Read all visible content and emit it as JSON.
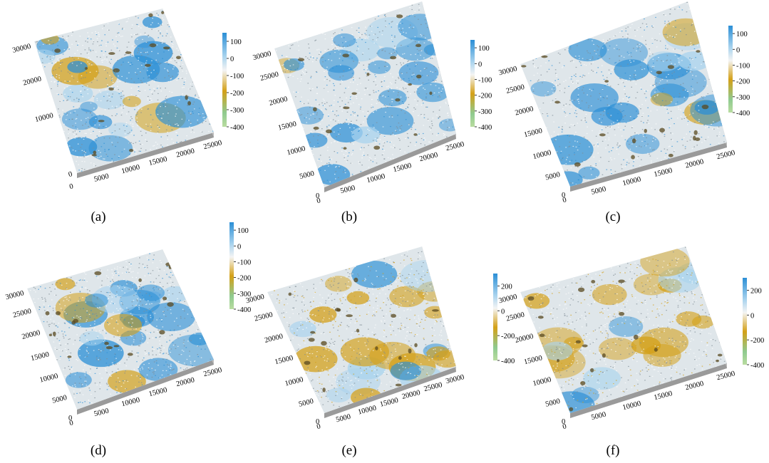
{
  "panels": [
    {
      "label": "(a)",
      "x_ticks": [
        "0",
        "5000",
        "10000",
        "15000",
        "20000",
        "25000"
      ],
      "y_ticks": [
        "0",
        "10000",
        "20000",
        "30000"
      ],
      "colorbar_ticks": [
        "100",
        "0",
        "-100",
        "-200",
        "-300",
        "-400"
      ],
      "colorbar_range": [
        -400,
        150
      ],
      "dominant": "blue"
    },
    {
      "label": "(b)",
      "x_ticks": [
        "0",
        "5000",
        "10000",
        "15000",
        "20000",
        "25000"
      ],
      "y_ticks": [
        "5000",
        "10000",
        "15000",
        "20000",
        "25000",
        "30000"
      ],
      "colorbar_ticks": [
        "100",
        "0",
        "-100",
        "-200",
        "-300",
        "-400"
      ],
      "colorbar_range": [
        -400,
        150
      ],
      "dominant": "blue"
    },
    {
      "label": "(c)",
      "x_ticks": [
        "0",
        "5000",
        "10000",
        "15000",
        "20000",
        "25000"
      ],
      "y_ticks": [
        "5000",
        "10000",
        "15000",
        "20000",
        "25000",
        "30000"
      ],
      "colorbar_ticks": [
        "100",
        "0",
        "-100",
        "-200",
        "-300",
        "-400"
      ],
      "colorbar_range": [
        -400,
        150
      ],
      "dominant": "blue"
    },
    {
      "label": "(d)",
      "x_ticks": [
        "0",
        "5000",
        "10000",
        "15000",
        "20000",
        "25000"
      ],
      "y_ticks": [
        "5000",
        "10000",
        "15000",
        "20000",
        "25000",
        "30000"
      ],
      "colorbar_ticks": [
        "100",
        "0",
        "-100",
        "-200",
        "-300",
        "-400"
      ],
      "colorbar_range": [
        -400,
        150
      ],
      "dominant": "blue"
    },
    {
      "label": "(e)",
      "x_ticks": [
        "0",
        "5000",
        "10000",
        "15000",
        "20000",
        "25000",
        "30000"
      ],
      "y_ticks": [
        "5000",
        "10000",
        "15000",
        "20000",
        "25000",
        "30000"
      ],
      "colorbar_ticks": [
        "200",
        "0",
        "-200",
        "-400"
      ],
      "colorbar_range": [
        -400,
        300
      ],
      "dominant": "gold"
    },
    {
      "label": "(f)",
      "x_ticks": [
        "0",
        "5000",
        "10000",
        "15000",
        "20000",
        "25000"
      ],
      "y_ticks": [
        "5000",
        "10000",
        "15000",
        "20000",
        "25000",
        "30000"
      ],
      "colorbar_ticks": [
        "200",
        "0",
        "-200",
        "-400"
      ],
      "colorbar_range": [
        -400,
        300
      ],
      "dominant": "gold"
    }
  ],
  "colors": {
    "blue": "#2b8fd6",
    "light_blue": "#a8d3ee",
    "white": "#f4f4f4",
    "gold": "#d4a017",
    "green": "#8fca8f",
    "base_gray": "#9a9a9a"
  }
}
